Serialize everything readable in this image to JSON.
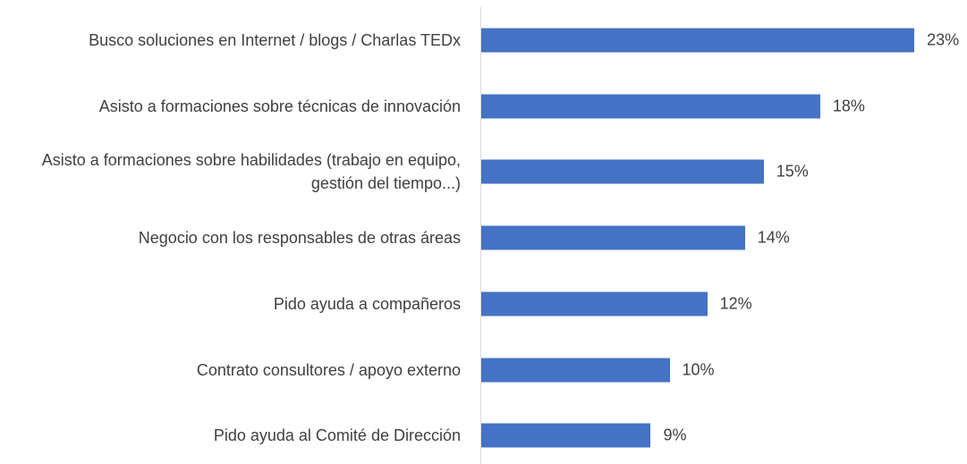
{
  "chart_data": {
    "type": "bar",
    "orientation": "horizontal",
    "categories": [
      "Busco soluciones en Internet / blogs / Charlas TEDx",
      "Asisto a formaciones sobre técnicas de innovación",
      "Asisto a formaciones sobre habilidades (trabajo en equipo, gestión del tiempo...)",
      "Negocio con los responsables de otras áreas",
      "Pido ayuda a compañeros",
      "Contrato consultores / apoyo externo",
      "Pido ayuda al Comité de Dirección"
    ],
    "values": [
      23,
      18,
      15,
      14,
      12,
      10,
      9
    ],
    "value_labels": [
      "23%",
      "18%",
      "15%",
      "14%",
      "12%",
      "10%",
      "9%"
    ],
    "color": "#4472c4"
  }
}
